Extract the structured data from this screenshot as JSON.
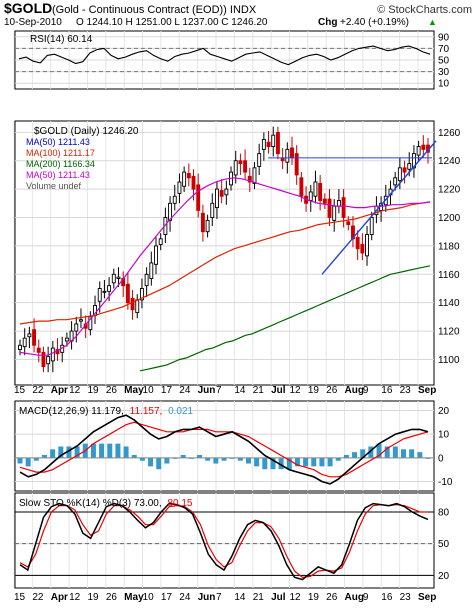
{
  "header": {
    "symbol": "$GOLD",
    "name": "(Gold - Continuous Contract (EOD)) INDX",
    "brand": "© StockCharts.com",
    "date": "10-Sep-2010",
    "ohlc": "O 1244.10  H 1251.00  L 1237.00  C 1246.20",
    "chg_label": "Chg",
    "chg_value": "+2.40 (+0.19%)",
    "chg_arrow": "▲"
  },
  "colors": {
    "up_candle": "#000000",
    "down_candle": "#cc0000",
    "ma50": "#0000cc",
    "ma100": "#dd2200",
    "ma200": "#006600",
    "ma50b": "#cc00cc",
    "trendline": "#2244dd",
    "macd_line": "#000000",
    "macd_signal": "#ee0000",
    "histogram": "#3399cc",
    "stoch_k": "#000000",
    "stoch_d": "#ee0000"
  },
  "x_axis_labels": [
    "15",
    "22",
    "Apr",
    "12",
    "19",
    "26",
    "May",
    "10",
    "17",
    "24",
    "Jun",
    "7",
    "14",
    "21",
    "Jul",
    "12",
    "19",
    "26",
    "Aug",
    "9",
    "16",
    "23",
    "Sep"
  ],
  "chart_data": [
    {
      "panel": "rsi",
      "type": "line",
      "title": "RSI(14) 60.14",
      "y_ticks": [
        90,
        70,
        50,
        30,
        10
      ],
      "ylim": [
        0,
        100
      ],
      "reference_lines": [
        70,
        30
      ],
      "series": [
        {
          "name": "RSI(14)",
          "values": [
            52,
            55,
            48,
            45,
            58,
            60,
            55,
            50,
            44,
            47,
            62,
            68,
            70,
            58,
            52,
            55,
            60,
            64,
            66,
            58,
            52,
            48,
            56,
            60,
            62,
            66,
            70,
            60,
            56,
            52,
            48,
            54,
            60,
            62,
            64,
            58,
            52,
            46,
            42,
            48,
            54,
            58,
            60,
            56,
            50,
            54,
            60,
            66,
            70,
            72,
            74,
            70,
            66,
            68,
            72,
            74,
            70,
            64,
            60
          ]
        }
      ]
    },
    {
      "panel": "price",
      "type": "candlestick",
      "title": "$GOLD (Daily) 1246.20",
      "y_ticks": [
        1260,
        1240,
        1220,
        1200,
        1180,
        1160,
        1140,
        1120,
        1100
      ],
      "ylim": [
        1082,
        1268
      ],
      "legend": [
        {
          "name": "MA(50) 1211.43",
          "color": "#0000cc"
        },
        {
          "name": "MA(100) 1211.17",
          "color": "#dd2200"
        },
        {
          "name": "MA(200) 1166.34",
          "color": "#006600"
        },
        {
          "name": "MA(50) 1211.43",
          "color": "#cc00cc"
        },
        {
          "name": "Volume undef",
          "color": "#555555"
        }
      ],
      "close": [
        1110,
        1115,
        1118,
        1110,
        1105,
        1095,
        1102,
        1108,
        1104,
        1110,
        1115,
        1120,
        1125,
        1128,
        1122,
        1130,
        1138,
        1150,
        1148,
        1152,
        1160,
        1158,
        1152,
        1140,
        1135,
        1142,
        1150,
        1160,
        1168,
        1180,
        1185,
        1200,
        1210,
        1215,
        1225,
        1232,
        1228,
        1220,
        1205,
        1190,
        1198,
        1210,
        1220,
        1215,
        1220,
        1232,
        1240,
        1238,
        1232,
        1225,
        1235,
        1245,
        1255,
        1250,
        1258,
        1245,
        1240,
        1248,
        1242,
        1230,
        1215,
        1210,
        1218,
        1225,
        1212,
        1210,
        1200,
        1208,
        1212,
        1200,
        1195,
        1185,
        1178,
        1175,
        1188,
        1200,
        1208,
        1210,
        1215,
        1220,
        1228,
        1235,
        1232,
        1238,
        1245,
        1250,
        1248,
        1246
      ],
      "series": [
        {
          "name": "MA(200)",
          "values": [
            1092,
            1093,
            1094,
            1095,
            1096,
            1098,
            1100,
            1101,
            1103,
            1105,
            1107,
            1108,
            1110,
            1112,
            1113,
            1115,
            1117,
            1118,
            1120,
            1122,
            1124,
            1126,
            1128,
            1130,
            1132,
            1134,
            1136,
            1138,
            1140,
            1142,
            1144,
            1146,
            1148,
            1150,
            1152,
            1154,
            1156,
            1158,
            1160,
            1161,
            1162,
            1163,
            1164,
            1165,
            1166
          ]
        },
        {
          "name": "MA(100)",
          "values": [
            1125,
            1126,
            1127,
            1127,
            1128,
            1128,
            1129,
            1130,
            1131,
            1133,
            1135,
            1137,
            1140,
            1143,
            1146,
            1149,
            1152,
            1156,
            1160,
            1164,
            1168,
            1172,
            1175,
            1178,
            1180,
            1182,
            1184,
            1186,
            1188,
            1190,
            1191,
            1193,
            1195,
            1196,
            1197,
            1198,
            1199,
            1201,
            1203,
            1205,
            1206,
            1207,
            1209,
            1210,
            1211
          ]
        },
        {
          "name": "MA(50)",
          "values": [
            1105,
            1104,
            1103,
            1103,
            1106,
            1110,
            1116,
            1124,
            1132,
            1140,
            1148,
            1156,
            1165,
            1174,
            1182,
            1190,
            1198,
            1205,
            1212,
            1218,
            1222,
            1225,
            1227,
            1228,
            1227,
            1225,
            1223,
            1221,
            1219,
            1217,
            1215,
            1212,
            1210,
            1209,
            1208,
            1208,
            1207,
            1207,
            1208,
            1208,
            1209,
            1209,
            1210,
            1210,
            1211
          ]
        }
      ],
      "annotations": [
        {
          "type": "horizontal_line",
          "value": 1242
        },
        {
          "type": "trendline",
          "from": 1160,
          "to": 1254
        }
      ]
    },
    {
      "panel": "macd",
      "type": "line",
      "title": "MACD(12,26,9) 11.179, 11.157, 0.021",
      "title_parts": {
        "macd": "MACD(12,26,9) 11.179,",
        "signal": "11.157,",
        "hist": "0.021"
      },
      "y_ticks": [
        20,
        10,
        0,
        -10
      ],
      "ylim": [
        -14,
        24
      ],
      "series": [
        {
          "name": "MACD",
          "values": [
            -6,
            -8,
            -7,
            -5,
            -2,
            1,
            3,
            5,
            8,
            11,
            13,
            15,
            17,
            18,
            16,
            13,
            10,
            8,
            9,
            11,
            12,
            12,
            13,
            11,
            9,
            10,
            11,
            9,
            7,
            4,
            1,
            -1,
            -3,
            -5,
            -6,
            -7,
            -8,
            -10,
            -11,
            -9,
            -6,
            -3,
            0,
            3,
            6,
            8,
            10,
            11,
            12,
            12,
            11
          ]
        },
        {
          "name": "Signal",
          "values": [
            -4,
            -5,
            -6,
            -6,
            -5,
            -3,
            -1,
            1,
            3,
            6,
            8,
            10,
            12,
            14,
            15,
            14,
            13,
            12,
            11,
            11,
            11,
            12,
            12,
            12,
            11,
            11,
            11,
            10,
            9,
            7,
            5,
            3,
            1,
            -1,
            -3,
            -4,
            -5,
            -7,
            -8,
            -8,
            -7,
            -5,
            -3,
            -1,
            1,
            4,
            6,
            8,
            9,
            10,
            11
          ]
        }
      ]
    },
    {
      "panel": "stochastic",
      "type": "line",
      "title": "Slow STO %K(14) %D(3) 73.00, 80.15",
      "title_parts": {
        "k": "Slow STO %K(14) %D(3) 73.00,",
        "d": "80.15"
      },
      "y_ticks": [
        80,
        50,
        20
      ],
      "ylim": [
        8,
        98
      ],
      "reference_lines": [
        80,
        20
      ],
      "series": [
        {
          "name": "%K",
          "values": [
            30,
            25,
            50,
            75,
            85,
            88,
            86,
            78,
            60,
            55,
            70,
            85,
            88,
            86,
            80,
            72,
            65,
            70,
            80,
            88,
            87,
            84,
            78,
            60,
            40,
            30,
            25,
            38,
            55,
            68,
            72,
            70,
            62,
            48,
            30,
            18,
            16,
            22,
            28,
            25,
            22,
            30,
            50,
            72,
            84,
            88,
            87,
            86,
            88,
            85,
            80,
            76,
            73
          ]
        },
        {
          "name": "%D",
          "values": [
            32,
            28,
            40,
            62,
            80,
            86,
            86,
            82,
            68,
            58,
            62,
            78,
            86,
            86,
            82,
            76,
            68,
            68,
            76,
            85,
            86,
            85,
            80,
            68,
            48,
            35,
            28,
            32,
            48,
            62,
            70,
            70,
            66,
            55,
            38,
            24,
            18,
            19,
            24,
            25,
            24,
            27,
            42,
            62,
            78,
            86,
            87,
            86,
            87,
            86,
            83,
            80,
            80
          ]
        }
      ]
    }
  ]
}
